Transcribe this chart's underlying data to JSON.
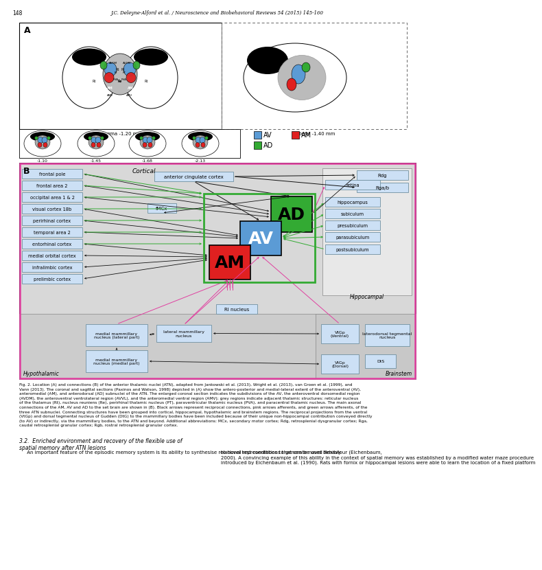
{
  "page_num": "148",
  "header": "J.C. Deleyne-Alford et al. / Neuroscience and Biobehavioral Reviews 54 (2015) 145-160",
  "left_boxes": [
    "frontal pole",
    "frontal area 2",
    "occipital area 1 & 2",
    "visual cortex 18b",
    "perirhinal cortex",
    "temporal area 2",
    "entorhinal cortex",
    "medial orbital cortex",
    "infralimbic cortex",
    "prelimbic cortex"
  ],
  "right_upper_boxes": [
    "Rdg",
    "Rga/b"
  ],
  "right_hippo_boxes": [
    "retina",
    "hippocampus",
    "subiculum",
    "presubiculum",
    "parasubiculum",
    "postsubiculum"
  ],
  "center_top_box": "anterior cingulate cortex",
  "fmcx_box": "fMCx",
  "ri_nucleus_box": "RI nucleus",
  "hypo_boxes": [
    "medial mammillary\nnucleus (lateral part)",
    "lateral mammillary\nnucleus"
  ],
  "hypo_box2": "medial mammillary\nnucleus (medial part)",
  "brainstem_boxes": [
    "VtGp\n(Ventral)",
    "laterodorsal tegmental\nnucleus",
    "DtS",
    "VtGp\n(Dorsal)"
  ],
  "cortical_label": "Cortical",
  "hypothalamic_label": "Hypothalamic",
  "hippocampal_label": "Hippocampal",
  "brainstem_label": "Brainstem",
  "bregma_label": "Bregma -1.20 mm",
  "lateral_label": "Lateral -1.40 mm",
  "coords": [
    "-1.10",
    "-1.45",
    "-1.68",
    "-2.13"
  ],
  "av_color": "#5b9bd5",
  "am_color": "#e02020",
  "ad_color": "#33aa33",
  "box_fill": "#cce0f5",
  "box_edge": "#7090a0",
  "bg_cortical": "#d8d8d8",
  "bg_hypo": "#c8c8c8",
  "bg_bs": "#c0c0c0",
  "pink": "#e040a0",
  "green_arrow": "#33aa33",
  "black_arrow": "#111111",
  "fig_caption_bold": "Fig. 2.",
  "fig_caption": " Location (A) and connections (B) of the anterior thalamic nuclei (ATN), adapted from ",
  "fig_caption2": "Jankowski et al. (2013)",
  "fig_caption3": ", Wright et al. (2013), ",
  "fig_caption4": "van Groen et al. (1999)",
  "fig_caption5": ", and\n",
  "fig_caption6": "Vann (2013)",
  "fig_caption7": ". The coronal and sagittal sections (",
  "fig_caption8": "Paxinos and Watson, 1998",
  "fig_caption9": ") depicted in (A) show the antero-posterior and medial-lateral extent of the anteroventral (AV),\nanteromedial (AM), and anterodorsal (AD) subnuclei of the ATN. The enlarged coronal section indicates the subdivisions of the AV, the anteroventral dorsomedial region\n(AVDM), the anteroventral ventrolateral region (AVVL), and the anteromedial ventral region (AMV); grey regions indicate adjacent thalamic structures: reticular nucleus\nof the thalamus (Rt), nucleus reuniens (Re), perirhinal thalamic nucleus (PT), paraventricular thalamic nucleus (PVA), and paracentral thalamic nucleus. The main axonal\nconnections of the AM, AV and AD to the set brain are shown in (B). Black arrows represent reciprocal connections, pink arrows afferents, and green arrows afferents, of the\nthree ATN subnuclei. Connecting structures have been grouped into cortical, hippocampal, hypothalamic and brainstem regions. The reciprocal projections from the ventral\n(VtGp) and dorsal tegmental nucleus of Gudden (DtG) to the mammillary bodies have been included because of their unique non-hippocampal contribution conveyed directly\n(to AV) or indirectly, via the mammillary bodies, to the ATN and beyond. Additional abbreviations: MCx, secondary motor cortex; Rdg, retrosplenial dysgranular cortex; Rga,\ncaudal retrosplenial granular cortex; Rgb, rostral retrosplenial granular cortex.",
  "section_head": "3.2.  Enriched environment and recovery of the flexible use of\nspatial memory after ATN lesions",
  "para_left": "     An important feature of the episodic memory system is its ability to synthesise relational representations that can be used flexibly",
  "para_right": "to novel test conditions to generate novel behaviour (Eichenbaum,\n2000). A convincing example of this ability in the context of spatial memory was established by a modified water maze procedure\nintroduced by Eichenbaum et al. (1990). Rats with fornix or hippocampal lesions were able to learn the location of a fixed platform"
}
